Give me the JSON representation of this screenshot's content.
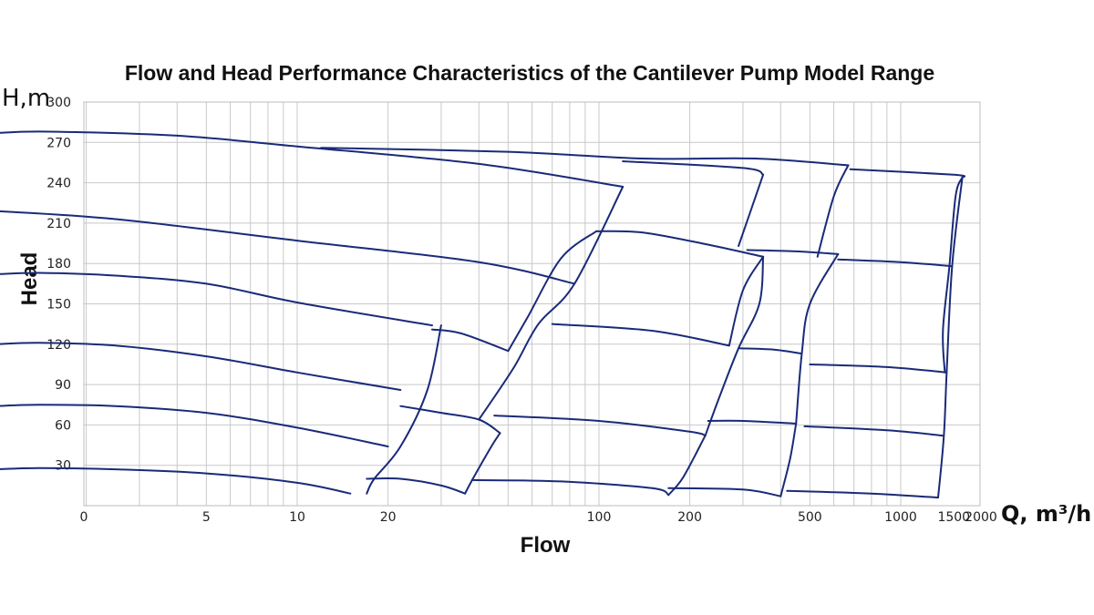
{
  "chart_data": {
    "type": "line",
    "title": "Flow and Head Performance Characteristics of the Cantilever Pump Model Range",
    "xlabel": "Flow",
    "ylabel": "Head",
    "x_unit": "Q, m³/h",
    "y_unit": "H,m",
    "y_range": [
      0,
      300
    ],
    "y_ticks": [
      "30",
      "60",
      "90",
      "120",
      "150",
      "180",
      "210",
      "240",
      "270",
      "300"
    ],
    "x_scale": "log",
    "x_ticks": [
      "0",
      "5",
      "10",
      "20",
      "100",
      "200",
      "500",
      "1000",
      "1500",
      "2000"
    ],
    "grid": true,
    "series_color": "#1a2a78",
    "series": [
      {
        "points": [
          [
            1,
            27
          ],
          [
            1.4,
            28
          ],
          [
            2.5,
            27
          ],
          [
            5,
            24
          ],
          [
            10,
            17
          ],
          [
            15,
            9
          ]
        ]
      },
      {
        "points": [
          [
            1,
            74
          ],
          [
            1.4,
            75
          ],
          [
            2.5,
            74
          ],
          [
            5,
            69
          ],
          [
            10,
            58
          ],
          [
            20,
            44
          ]
        ]
      },
      {
        "points": [
          [
            1,
            120
          ],
          [
            1.4,
            121
          ],
          [
            2.5,
            119
          ],
          [
            5,
            111
          ],
          [
            10,
            99
          ],
          [
            22,
            86
          ]
        ]
      },
      {
        "points": [
          [
            1,
            172
          ],
          [
            1.4,
            173
          ],
          [
            2.5,
            171
          ],
          [
            5,
            165
          ],
          [
            10,
            151
          ],
          [
            28,
            134
          ]
        ]
      },
      {
        "points": [
          [
            1,
            219
          ],
          [
            2.5,
            213
          ],
          [
            10,
            197
          ],
          [
            40,
            181
          ],
          [
            83,
            165
          ]
        ]
      },
      {
        "points": [
          [
            1,
            277
          ],
          [
            1.5,
            278
          ],
          [
            4,
            275
          ],
          [
            10,
            267
          ],
          [
            40,
            254
          ],
          [
            120,
            237
          ]
        ]
      },
      {
        "points": [
          [
            12,
            266
          ],
          [
            50,
            263
          ],
          [
            140,
            258
          ],
          [
            330,
            258
          ],
          [
            670,
            253
          ]
        ]
      },
      {
        "points": [
          [
            120,
            256
          ],
          [
            300,
            251
          ],
          [
            350,
            246
          ]
        ]
      },
      {
        "points": [
          [
            680,
            250
          ],
          [
            1500,
            246
          ],
          [
            1600,
            244
          ]
        ]
      },
      {
        "points": [
          [
            17,
            20
          ],
          [
            22,
            20
          ],
          [
            30,
            15
          ],
          [
            36,
            9
          ]
        ]
      },
      {
        "points": [
          [
            22,
            74
          ],
          [
            30,
            69
          ],
          [
            40,
            64
          ],
          [
            47,
            54
          ]
        ]
      },
      {
        "points": [
          [
            28,
            131
          ],
          [
            35,
            128
          ],
          [
            50,
            115
          ]
        ]
      },
      {
        "points": [
          [
            38,
            19
          ],
          [
            75,
            18
          ],
          [
            150,
            13
          ],
          [
            170,
            8
          ]
        ]
      },
      {
        "points": [
          [
            45,
            67
          ],
          [
            100,
            63
          ],
          [
            200,
            55
          ],
          [
            225,
            52
          ]
        ]
      },
      {
        "points": [
          [
            70,
            135
          ],
          [
            150,
            130
          ],
          [
            270,
            119
          ]
        ]
      },
      {
        "points": [
          [
            98,
            204
          ],
          [
            140,
            203
          ],
          [
            230,
            194
          ],
          [
            350,
            185
          ]
        ]
      },
      {
        "points": [
          [
            170,
            13
          ],
          [
            300,
            12
          ],
          [
            400,
            7
          ]
        ]
      },
      {
        "points": [
          [
            230,
            63
          ],
          [
            300,
            63
          ],
          [
            450,
            61
          ]
        ]
      },
      {
        "points": [
          [
            290,
            117
          ],
          [
            380,
            116
          ],
          [
            470,
            113
          ]
        ]
      },
      {
        "points": [
          [
            310,
            190
          ],
          [
            450,
            189
          ],
          [
            620,
            187
          ]
        ]
      },
      {
        "points": [
          [
            480,
            59
          ],
          [
            900,
            56
          ],
          [
            1390,
            52
          ]
        ]
      },
      {
        "points": [
          [
            500,
            105
          ],
          [
            900,
            103
          ],
          [
            1420,
            99
          ]
        ]
      },
      {
        "points": [
          [
            620,
            183
          ],
          [
            1000,
            181
          ],
          [
            1480,
            178
          ]
        ]
      },
      {
        "points": [
          [
            420,
            11
          ],
          [
            800,
            9
          ],
          [
            1330,
            6
          ]
        ]
      },
      {
        "points": [
          [
            17,
            9
          ],
          [
            18,
            20
          ],
          [
            22,
            44
          ],
          [
            27,
            86
          ],
          [
            30,
            134
          ]
        ]
      },
      {
        "points": [
          [
            36,
            9
          ],
          [
            38,
            19
          ],
          [
            44,
            44
          ],
          [
            47,
            54
          ]
        ]
      },
      {
        "points": [
          [
            40,
            64
          ],
          [
            52,
            102
          ],
          [
            63,
            135
          ],
          [
            83,
            165
          ],
          [
            120,
            237
          ]
        ]
      },
      {
        "points": [
          [
            50,
            115
          ],
          [
            58,
            140
          ],
          [
            75,
            184
          ],
          [
            98,
            204
          ]
        ]
      },
      {
        "points": [
          [
            170,
            8
          ],
          [
            190,
            21
          ],
          [
            225,
            52
          ]
        ]
      },
      {
        "points": [
          [
            225,
            52
          ],
          [
            250,
            80
          ],
          [
            290,
            117
          ],
          [
            340,
            150
          ],
          [
            350,
            185
          ]
        ]
      },
      {
        "points": [
          [
            270,
            119
          ],
          [
            300,
            160
          ],
          [
            350,
            185
          ]
        ]
      },
      {
        "points": [
          [
            290,
            193
          ],
          [
            350,
            246
          ]
        ]
      },
      {
        "points": [
          [
            400,
            7
          ],
          [
            430,
            35
          ],
          [
            450,
            61
          ]
        ]
      },
      {
        "points": [
          [
            450,
            61
          ],
          [
            470,
            113
          ],
          [
            500,
            150
          ],
          [
            620,
            187
          ]
        ]
      },
      {
        "points": [
          [
            530,
            185
          ],
          [
            600,
            230
          ],
          [
            670,
            253
          ]
        ]
      },
      {
        "points": [
          [
            1330,
            6
          ],
          [
            1390,
            52
          ],
          [
            1420,
            99
          ],
          [
            1480,
            178
          ],
          [
            1600,
            244
          ]
        ]
      },
      {
        "points": [
          [
            1400,
            99
          ],
          [
            1380,
            130
          ],
          [
            1450,
            178
          ],
          [
            1520,
            230
          ],
          [
            1600,
            244
          ]
        ]
      }
    ]
  }
}
